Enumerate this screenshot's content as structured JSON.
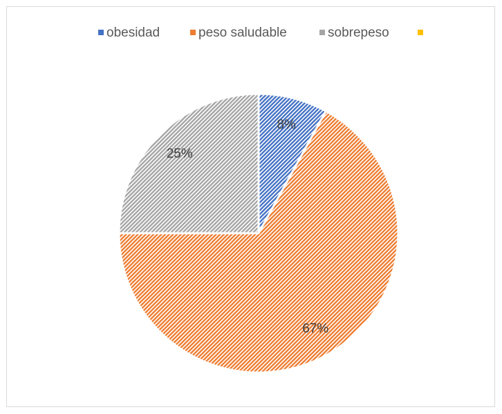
{
  "chart_data": {
    "type": "pie",
    "categories": [
      "obesidad",
      "peso saludable",
      "sobrepeso",
      null
    ],
    "values": [
      8,
      67,
      25,
      0
    ],
    "value_labels": [
      "8%",
      "67%",
      "25%",
      null
    ],
    "colors": [
      "#4472c4",
      "#ed7d31",
      "#a5a5a5",
      "#ffc000"
    ],
    "legend": "top"
  }
}
